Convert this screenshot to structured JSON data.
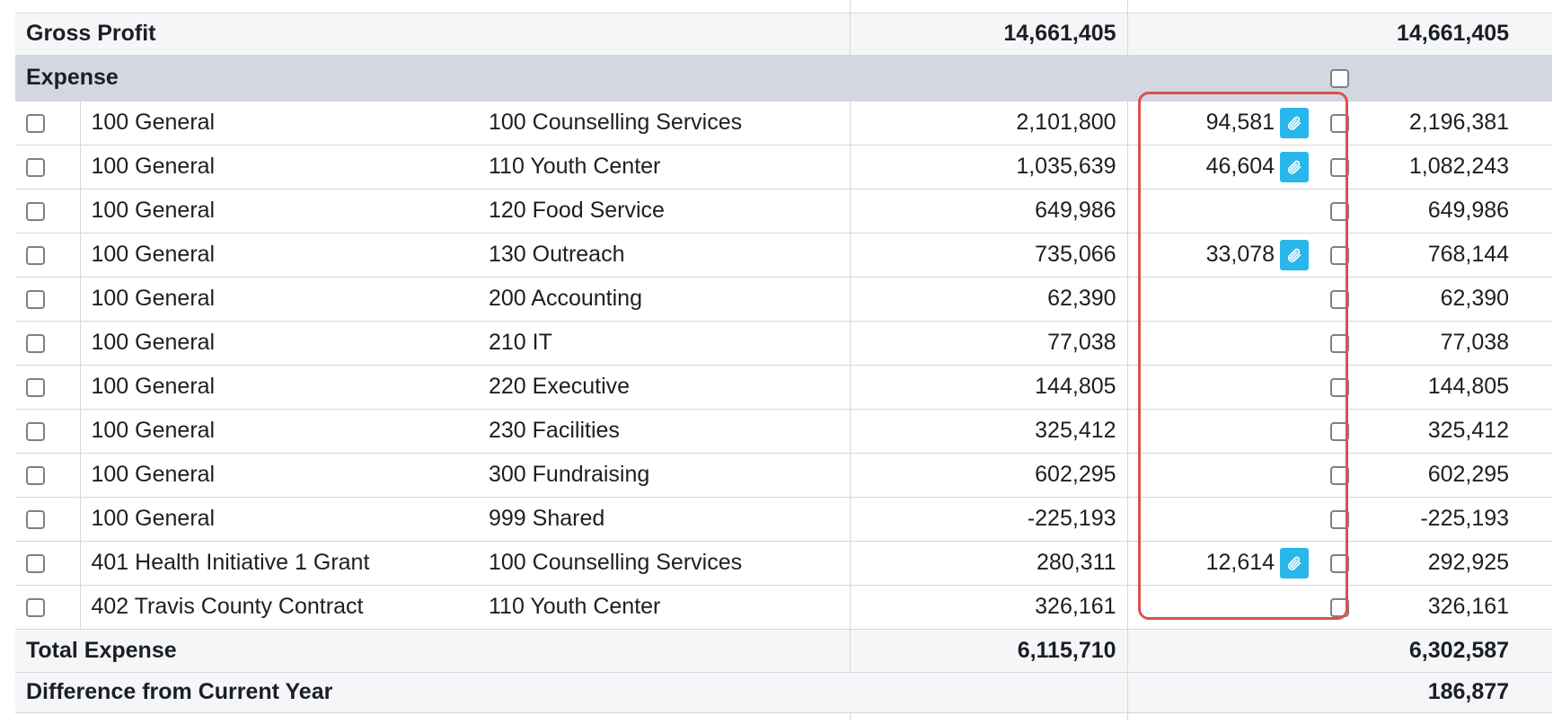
{
  "gross_profit": {
    "label": "Gross Profit",
    "amount": "14,661,405",
    "total": "14,661,405"
  },
  "expense_section": {
    "label": "Expense"
  },
  "rows": [
    {
      "fund": "100 General",
      "department": "100 Counselling Services",
      "amount": "2,101,800",
      "adjustment": "94,581",
      "has_attachment": true,
      "total": "2,196,381"
    },
    {
      "fund": "100 General",
      "department": "110 Youth Center",
      "amount": "1,035,639",
      "adjustment": "46,604",
      "has_attachment": true,
      "total": "1,082,243"
    },
    {
      "fund": "100 General",
      "department": "120 Food Service",
      "amount": "649,986",
      "adjustment": "",
      "has_attachment": false,
      "total": "649,986"
    },
    {
      "fund": "100 General",
      "department": "130 Outreach",
      "amount": "735,066",
      "adjustment": "33,078",
      "has_attachment": true,
      "total": "768,144"
    },
    {
      "fund": "100 General",
      "department": "200 Accounting",
      "amount": "62,390",
      "adjustment": "",
      "has_attachment": false,
      "total": "62,390"
    },
    {
      "fund": "100 General",
      "department": "210 IT",
      "amount": "77,038",
      "adjustment": "",
      "has_attachment": false,
      "total": "77,038"
    },
    {
      "fund": "100 General",
      "department": "220 Executive",
      "amount": "144,805",
      "adjustment": "",
      "has_attachment": false,
      "total": "144,805"
    },
    {
      "fund": "100 General",
      "department": "230 Facilities",
      "amount": "325,412",
      "adjustment": "",
      "has_attachment": false,
      "total": "325,412"
    },
    {
      "fund": "100 General",
      "department": "300 Fundraising",
      "amount": "602,295",
      "adjustment": "",
      "has_attachment": false,
      "total": "602,295"
    },
    {
      "fund": "100 General",
      "department": "999 Shared",
      "amount": "-225,193",
      "adjustment": "",
      "has_attachment": false,
      "total": "-225,193"
    },
    {
      "fund": "401 Health Initiative 1 Grant",
      "department": "100 Counselling Services",
      "amount": "280,311",
      "adjustment": "12,614",
      "has_attachment": true,
      "total": "292,925"
    },
    {
      "fund": "402 Travis County Contract",
      "department": "110 Youth Center",
      "amount": "326,161",
      "adjustment": "",
      "has_attachment": false,
      "total": "326,161"
    }
  ],
  "total_expense": {
    "label": "Total Expense",
    "amount": "6,115,710",
    "total": "6,302,587"
  },
  "difference": {
    "label": "Difference from Current Year",
    "total": "186,877"
  },
  "icons": {
    "attachment": "paperclip-icon",
    "row_select": "checkbox"
  },
  "colors": {
    "section_bg": "#d3d8e0",
    "attachment_bg": "#29b6ea",
    "highlight_border": "#d9534f"
  }
}
